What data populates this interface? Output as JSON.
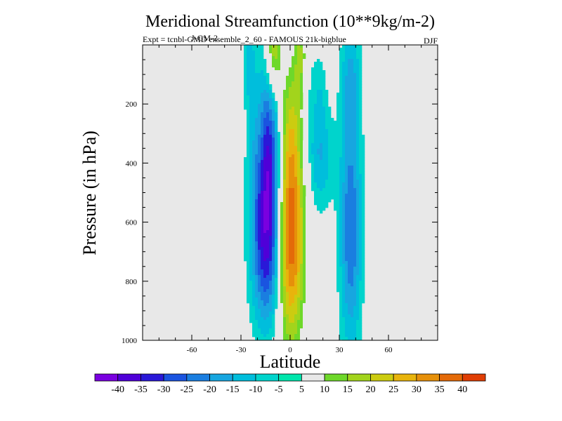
{
  "chart_data": {
    "type": "heatmap",
    "title": "Meridional Streamfunction (10**9kg/m-2)",
    "subtitle": "Expt = tcnbl-GMD ensemble_2_60 - FAMOUS 21k-bigblue",
    "subtitle_overlap": "J-GM-2",
    "season": "DJF",
    "xlabel": "Latitude",
    "ylabel": "Pressure (in hPa)",
    "xlim": [
      -90,
      90
    ],
    "ylim": [
      1000,
      0
    ],
    "x_ticks": [
      -60,
      -30,
      0,
      30,
      60
    ],
    "x_tick_labels": [
      "-60",
      "-30",
      "0",
      "30",
      "60"
    ],
    "y_ticks": [
      200,
      400,
      600,
      800,
      1000
    ],
    "y_tick_labels": [
      "200",
      "400",
      "600",
      "800",
      "1000"
    ],
    "background_color": "#e8e8e8",
    "colorbar": {
      "labels": [
        "-40",
        "-35",
        "-30",
        "-25",
        "-20",
        "-15",
        "-10",
        "-5",
        "5",
        "10",
        "15",
        "20",
        "25",
        "30",
        "35",
        "40"
      ],
      "colors": [
        "#7a00e0",
        "#4f00d8",
        "#2a18d8",
        "#1a54e0",
        "#1a7ee0",
        "#17a6e0",
        "#00bedc",
        "#00d4cc",
        "#00e6ac",
        "#e8e8e8",
        "#6ed82a",
        "#a2d41c",
        "#cccc10",
        "#e8b40c",
        "#e6900a",
        "#e46a08",
        "#e03e04"
      ]
    },
    "features": [
      {
        "name": "negative-cell-sh",
        "lat": -14,
        "pressure": 450,
        "value": -40
      },
      {
        "name": "positive-cell-sh",
        "lat": 0,
        "pressure": 640,
        "value": 40
      },
      {
        "name": "negative-cell-nh",
        "lat": 37,
        "pressure": 620,
        "value": -25
      },
      {
        "name": "positive-cell-upper-sh",
        "lat": -10,
        "pressure": 20,
        "value": 20
      },
      {
        "name": "positive-cell-upper-nh",
        "lat": 7,
        "pressure": 40,
        "value": 15
      },
      {
        "name": "positive-cell-far-sh",
        "lat": -50,
        "pressure": 100,
        "value": 10
      }
    ]
  }
}
